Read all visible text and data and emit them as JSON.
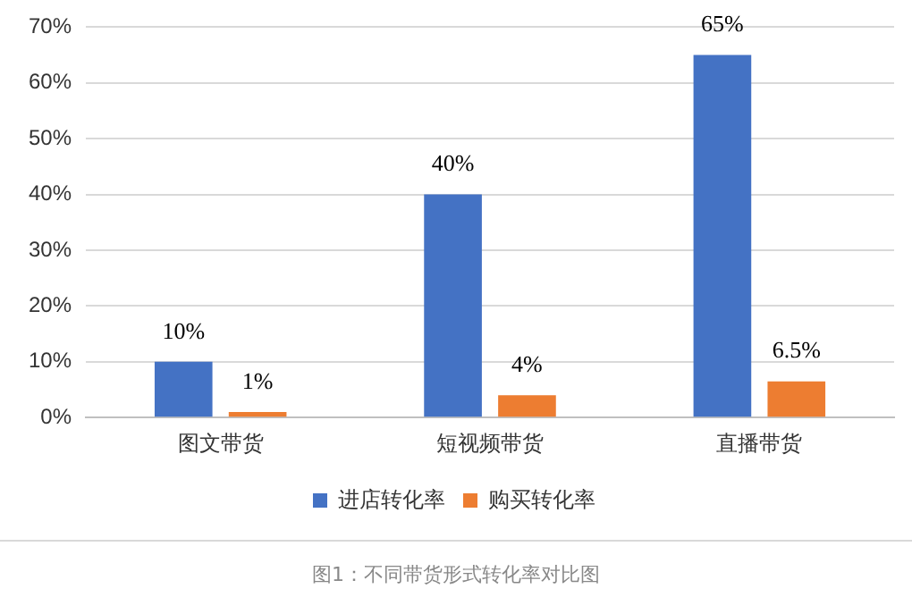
{
  "chart_data": {
    "type": "bar",
    "categories": [
      "图文带货",
      "短视频带货",
      "直播带货"
    ],
    "series": [
      {
        "name": "进店转化率",
        "color": "#4472c4",
        "values": [
          10,
          40,
          65
        ],
        "value_labels": [
          "10%",
          "40%",
          "65%"
        ]
      },
      {
        "name": "购买转化率",
        "color": "#ed7d31",
        "values": [
          1,
          4,
          6.5
        ],
        "value_labels": [
          "1%",
          "4%",
          "6.5%"
        ]
      }
    ],
    "ylim": [
      0,
      70
    ],
    "yticks": [
      {
        "value": 0,
        "label": "0%"
      },
      {
        "value": 10,
        "label": "10%"
      },
      {
        "value": 20,
        "label": "20%"
      },
      {
        "value": 30,
        "label": "30%"
      },
      {
        "value": 40,
        "label": "40%"
      },
      {
        "value": 50,
        "label": "50%"
      },
      {
        "value": 60,
        "label": "60%"
      },
      {
        "value": 70,
        "label": "70%"
      }
    ],
    "grid": "y",
    "legend": "bottom",
    "annotations": [
      "图1：不同带货形式转化率对比图"
    ]
  }
}
